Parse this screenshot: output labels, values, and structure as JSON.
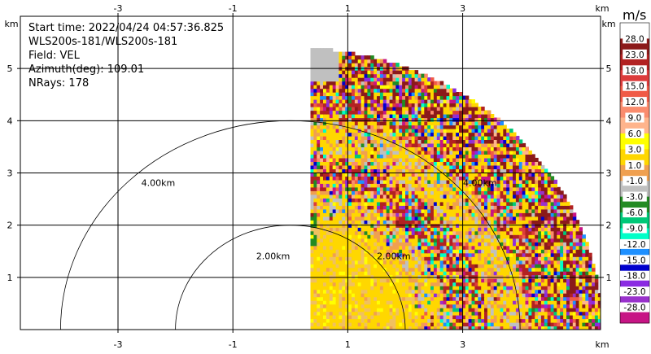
{
  "chart_data": {
    "type": "heatmap",
    "info": {
      "start_time": "Start time: 2022/04/24 04:57:36.825",
      "instrument": "WLS200s-181/WLS200s-181",
      "field": "Field: VEL",
      "azimuth": "Azimuth(deg): 109.01",
      "nrays": "NRays: 178"
    },
    "axis_unit": "km",
    "x_ticks": [
      -3,
      -1,
      1,
      3
    ],
    "x_tick_labels": [
      "-3",
      "-1",
      "1",
      "3"
    ],
    "y_ticks": [
      1,
      2,
      3,
      4,
      5
    ],
    "y_tick_labels": [
      "1",
      "2",
      "3",
      "4",
      "5"
    ],
    "xlim": [
      -4.7,
      5.4
    ],
    "ylim": [
      0,
      6
    ],
    "range_rings": [
      {
        "radius_km": 2.0,
        "label": "2.00km"
      },
      {
        "radius_km": 4.0,
        "label": "4.00km"
      }
    ],
    "ring_label_positions": [
      {
        "label": "4.00km",
        "x": -2.3,
        "y": 2.75
      },
      {
        "label": "2.00km",
        "x": -0.3,
        "y": 1.35
      },
      {
        "label": "2.00km",
        "x": 1.8,
        "y": 1.35
      },
      {
        "label": "4.00km",
        "x": 3.3,
        "y": 2.75
      }
    ],
    "data_extent": {
      "x_min": 0.35,
      "max_range_km": 5.4
    },
    "colorbar": {
      "unit": "m/s",
      "labels": [
        "28.0",
        "23.0",
        "18.0",
        "15.0",
        "12.0",
        "9.0",
        "6.0",
        "3.0",
        "1.0",
        "-1.0",
        "-3.0",
        "-6.0",
        "-9.0",
        "-12.0",
        "-15.0",
        "-18.0",
        "-23.0",
        "-28.0"
      ],
      "colors": [
        "#ffffff",
        "#8b1a1a",
        "#b22222",
        "#dc3c3c",
        "#f05a46",
        "#fa8c6e",
        "#ffb48c",
        "#ffff00",
        "#ffd700",
        "#f0a050",
        "#c0c0c0",
        "#228b22",
        "#00c878",
        "#00ffc8",
        "#1e90ff",
        "#0000cd",
        "#8a2be2",
        "#9932cc",
        "#c71585"
      ]
    }
  }
}
